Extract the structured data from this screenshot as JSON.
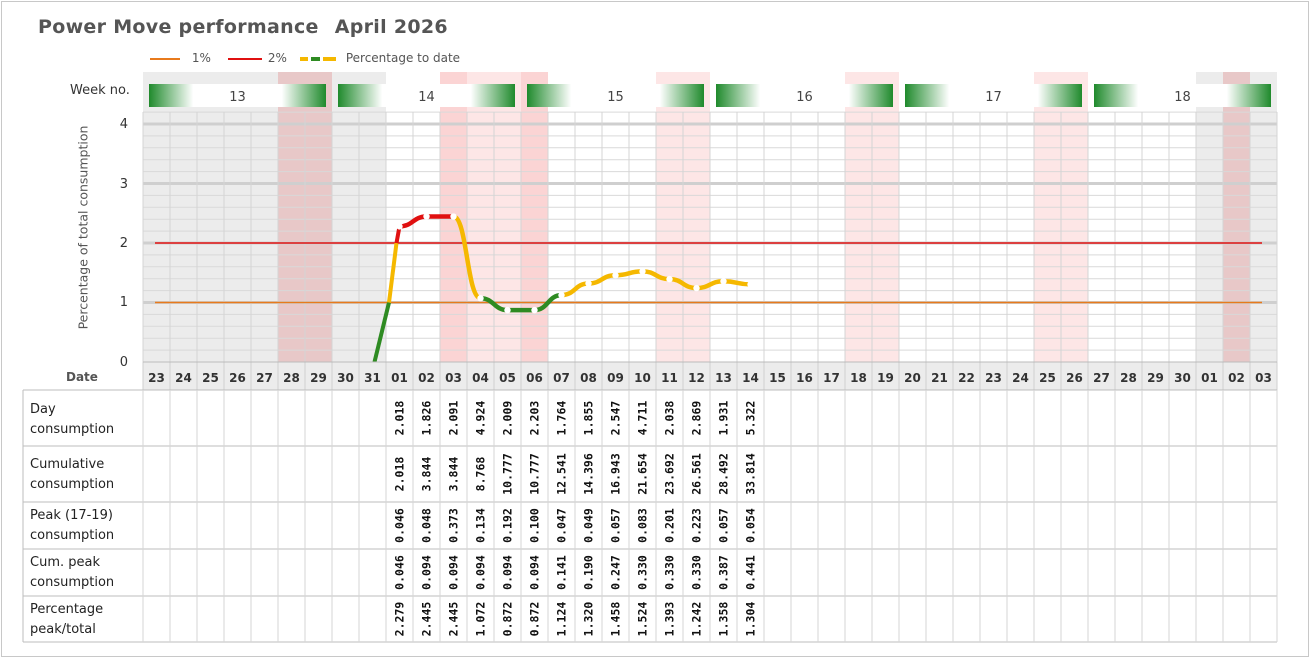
{
  "header": {
    "title": "Power Move performance",
    "month": "April 2026"
  },
  "legend": [
    {
      "label": "1%",
      "color": "#e87a1c"
    },
    {
      "label": "2%",
      "color": "#e01010"
    },
    {
      "label": "Percentage to date",
      "colors": [
        "#f5b800",
        "#2e8b22"
      ]
    }
  ],
  "week_label": "Week no.",
  "date_label": "Date",
  "table_labels": [
    "Day consumption",
    "Cumulative consumption",
    "Peak (17-19) consumption",
    "Cum. peak consumption",
    "Percentage peak/total"
  ],
  "chart_data": {
    "type": "line",
    "ylabel": "Percentage of total consumption",
    "ylim": [
      0,
      4
    ],
    "yticks": [
      "0",
      "1",
      "2",
      "3",
      "4"
    ],
    "reference_lines": [
      {
        "name": "1%",
        "value": 1,
        "color": "#e87a1c"
      },
      {
        "name": "2%",
        "value": 2,
        "color": "#e01010"
      }
    ],
    "weeks": [
      {
        "label": "13",
        "from": 0,
        "to": 6
      },
      {
        "label": "14",
        "from": 7,
        "to": 13
      },
      {
        "label": "15",
        "from": 14,
        "to": 20
      },
      {
        "label": "16",
        "from": 21,
        "to": 27
      },
      {
        "label": "17",
        "from": 28,
        "to": 34
      },
      {
        "label": "18",
        "from": 35,
        "to": 41
      }
    ],
    "dates": [
      "23",
      "24",
      "25",
      "26",
      "27",
      "28",
      "29",
      "30",
      "31",
      "01",
      "02",
      "03",
      "04",
      "05",
      "06",
      "07",
      "08",
      "09",
      "10",
      "11",
      "12",
      "13",
      "14",
      "15",
      "16",
      "17",
      "18",
      "19",
      "20",
      "21",
      "22",
      "23",
      "24",
      "25",
      "26",
      "27",
      "28",
      "29",
      "30",
      "01",
      "02",
      "03"
    ],
    "series": [
      {
        "points": [
          {
            "date_index": 9,
            "value": 2.279
          },
          {
            "date_index": 10,
            "value": 2.445
          },
          {
            "date_index": 11,
            "value": 2.445
          },
          {
            "date_index": 12,
            "value": 1.072
          },
          {
            "date_index": 13,
            "value": 0.872
          },
          {
            "date_index": 14,
            "value": 0.872
          },
          {
            "date_index": 15,
            "value": 1.124
          },
          {
            "date_index": 16,
            "value": 1.32
          },
          {
            "date_index": 17,
            "value": 1.458
          },
          {
            "date_index": 18,
            "value": 1.524
          },
          {
            "date_index": 19,
            "value": 1.393
          },
          {
            "date_index": 20,
            "value": 1.242
          },
          {
            "date_index": 21,
            "value": 1.358
          },
          {
            "date_index": 22,
            "value": 1.304
          }
        ]
      }
    ],
    "table_start_index": 9,
    "table": {
      "day_consumption": [
        "2.018",
        "1.826",
        "2.091",
        "4.924",
        "2.009",
        "2.203",
        "1.764",
        "1.855",
        "2.547",
        "4.711",
        "2.038",
        "2.869",
        "1.931",
        "5.322"
      ],
      "cumulative_consumption": [
        "2.018",
        "3.844",
        "3.844",
        "8.768",
        "10.777",
        "10.777",
        "12.541",
        "14.396",
        "16.943",
        "21.654",
        "23.692",
        "26.561",
        "28.492",
        "33.814"
      ],
      "peak_consumption": [
        "0.046",
        "0.048",
        "0.373",
        "0.134",
        "0.192",
        "0.100",
        "0.047",
        "0.049",
        "0.057",
        "0.083",
        "0.201",
        "0.223",
        "0.057",
        "0.054"
      ],
      "cum_peak_consumption": [
        "0.046",
        "0.094",
        "0.094",
        "0.094",
        "0.094",
        "0.094",
        "0.141",
        "0.190",
        "0.247",
        "0.330",
        "0.330",
        "0.330",
        "0.387",
        "0.441"
      ],
      "percentage_peak_total": [
        "2.279",
        "2.445",
        "2.445",
        "1.072",
        "0.872",
        "0.872",
        "1.124",
        "1.320",
        "1.458",
        "1.524",
        "1.393",
        "1.242",
        "1.358",
        "1.304"
      ]
    }
  }
}
